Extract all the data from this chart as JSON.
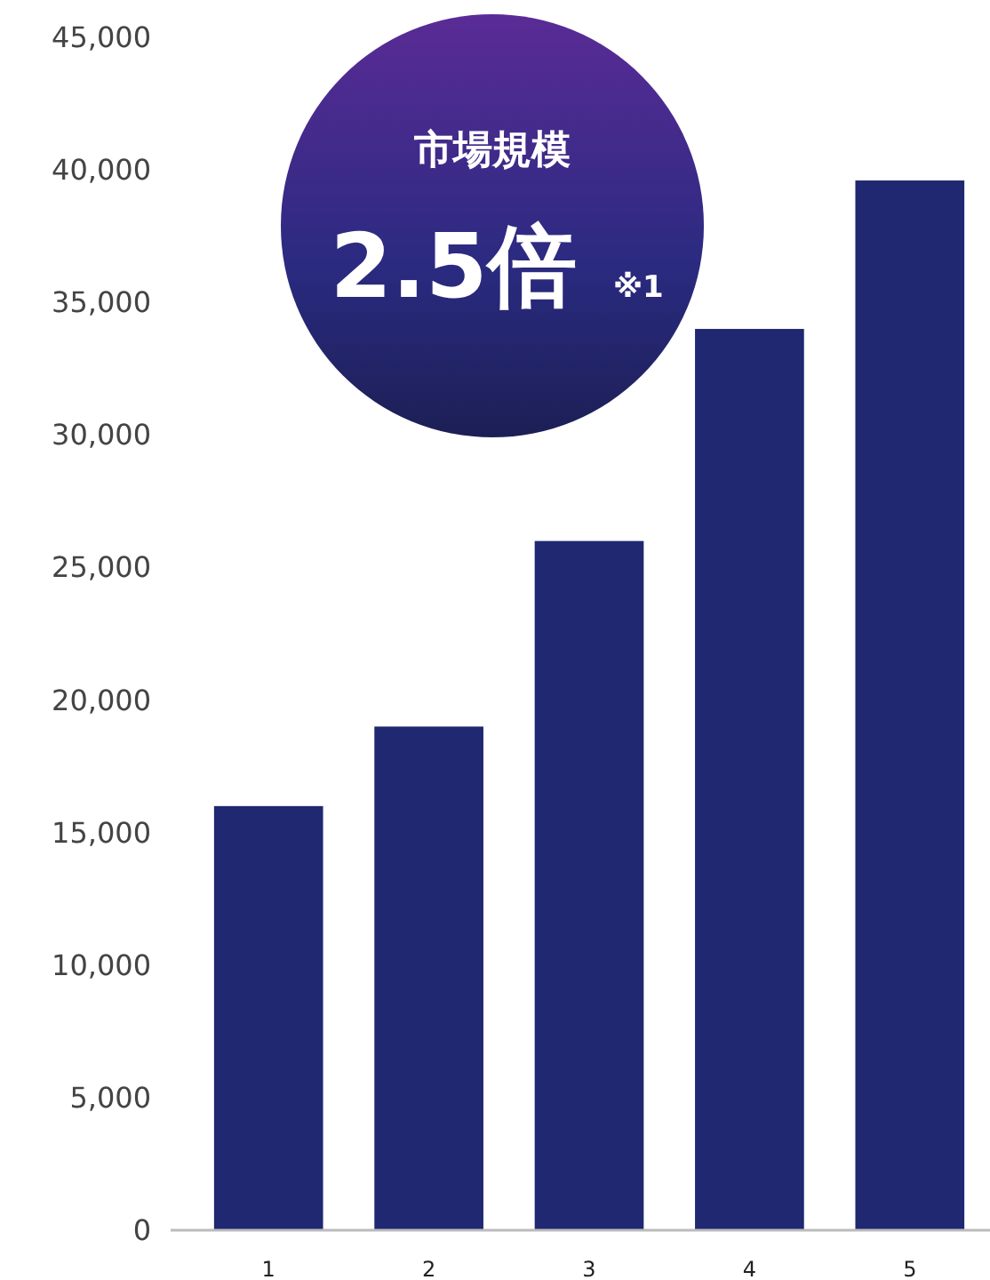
{
  "chart_data": {
    "type": "bar",
    "categories": [
      "1",
      "2",
      "3",
      "4",
      "5"
    ],
    "values": [
      16000,
      19000,
      26000,
      34000,
      39600
    ],
    "color": "#1f2870",
    "ylim": [
      0,
      45000
    ],
    "yticks": [
      {
        "value": 0,
        "label": "0"
      },
      {
        "value": 5000,
        "label": "5,000"
      },
      {
        "value": 10000,
        "label": "10,000"
      },
      {
        "value": 15000,
        "label": "15,000"
      },
      {
        "value": 20000,
        "label": "20,000"
      },
      {
        "value": 25000,
        "label": "25,000"
      },
      {
        "value": 30000,
        "label": "30,000"
      },
      {
        "value": 35000,
        "label": "35,000"
      },
      {
        "value": 40000,
        "label": "40,000"
      },
      {
        "value": 45000,
        "label": "45,000"
      }
    ],
    "grid": false,
    "annotations": [
      "市場規模",
      "2.5倍",
      "※1"
    ]
  }
}
